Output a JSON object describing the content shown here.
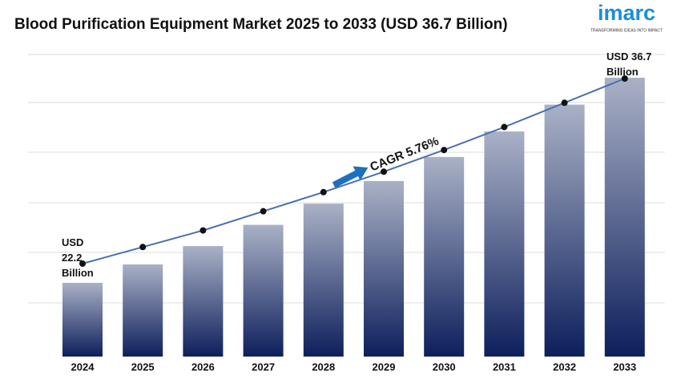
{
  "chart_data": {
    "type": "bar",
    "title": "Blood Purification Equipment Market 2025 to 2033 (USD 36.7 Billion)",
    "categories": [
      "2024",
      "2025",
      "2026",
      "2027",
      "2028",
      "2029",
      "2030",
      "2031",
      "2032",
      "2033"
    ],
    "values": [
      22.2,
      23.5,
      24.8,
      26.3,
      27.8,
      29.4,
      31.1,
      32.9,
      34.8,
      36.7
    ],
    "color": "#0d1f5c",
    "line_color": "#4a6fb0",
    "annotations": {
      "start": "USD 22.2 Billion",
      "end": "USD 36.7 Billion",
      "cagr": "CAGR 5.76%"
    }
  },
  "logo": {
    "name": "imarc",
    "tagline": "TRANSFORMING IDEAS INTO IMPACT"
  }
}
